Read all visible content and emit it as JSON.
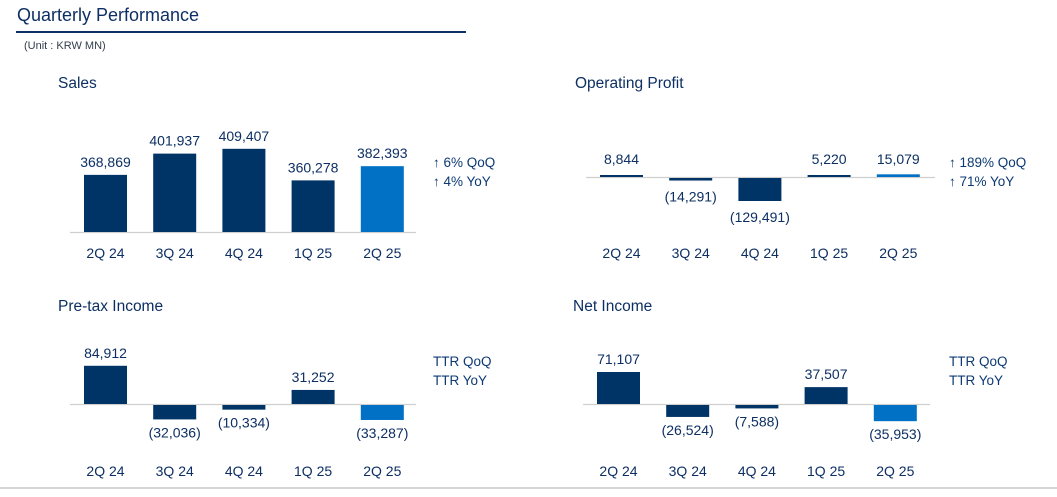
{
  "header": {
    "title": "Quarterly Performance",
    "unit": "(Unit : KRW MN)"
  },
  "colors": {
    "primary_bar": "#003366",
    "highlight_bar": "#0071c5",
    "axis": "#cfcfcf",
    "text": "#0d2f63"
  },
  "chart_data": [
    {
      "type": "bar",
      "title": "Sales",
      "categories": [
        "2Q 24",
        "3Q 24",
        "4Q 24",
        "1Q 25",
        "2Q 25"
      ],
      "values": [
        368869,
        401937,
        409407,
        360278,
        382393
      ],
      "value_labels": [
        "368,869",
        "401,937",
        "409,407",
        "360,278",
        "382,393"
      ],
      "highlight_index": 4,
      "axis_truncated": true,
      "ylim": [
        280000,
        420000
      ],
      "notes": [
        "↑ 6% QoQ",
        "↑ 4% YoY"
      ],
      "xlabel": "",
      "ylabel": ""
    },
    {
      "type": "bar",
      "title": "Operating Profit",
      "categories": [
        "2Q 24",
        "3Q 24",
        "4Q 24",
        "1Q 25",
        "2Q 25"
      ],
      "values": [
        8844,
        -14291,
        -129491,
        5220,
        15079
      ],
      "value_labels": [
        "8,844",
        "(14,291)",
        "(129,491)",
        "5,220",
        "15,079"
      ],
      "highlight_index": 4,
      "notes": [
        "↑ 189% QoQ",
        "↑ 71% YoY"
      ],
      "xlabel": "",
      "ylabel": ""
    },
    {
      "type": "bar",
      "title": "Pre-tax Income",
      "categories": [
        "2Q 24",
        "3Q 24",
        "4Q 24",
        "1Q 25",
        "2Q 25"
      ],
      "values": [
        84912,
        -32036,
        -10334,
        31252,
        -33287
      ],
      "value_labels": [
        "84,912",
        "(32,036)",
        "(10,334)",
        "31,252",
        "(33,287)"
      ],
      "highlight_index": 4,
      "notes": [
        "TTR QoQ",
        "TTR YoY"
      ],
      "xlabel": "",
      "ylabel": ""
    },
    {
      "type": "bar",
      "title": "Net Income",
      "categories": [
        "2Q 24",
        "3Q 24",
        "4Q 24",
        "1Q 25",
        "2Q 25"
      ],
      "values": [
        71107,
        -26524,
        -7588,
        37507,
        -35953
      ],
      "value_labels": [
        "71,107",
        "(26,524)",
        "(7,588)",
        "37,507",
        "(35,953)"
      ],
      "highlight_index": 4,
      "notes": [
        "TTR QoQ",
        "TTR YoY"
      ],
      "xlabel": "",
      "ylabel": ""
    }
  ]
}
